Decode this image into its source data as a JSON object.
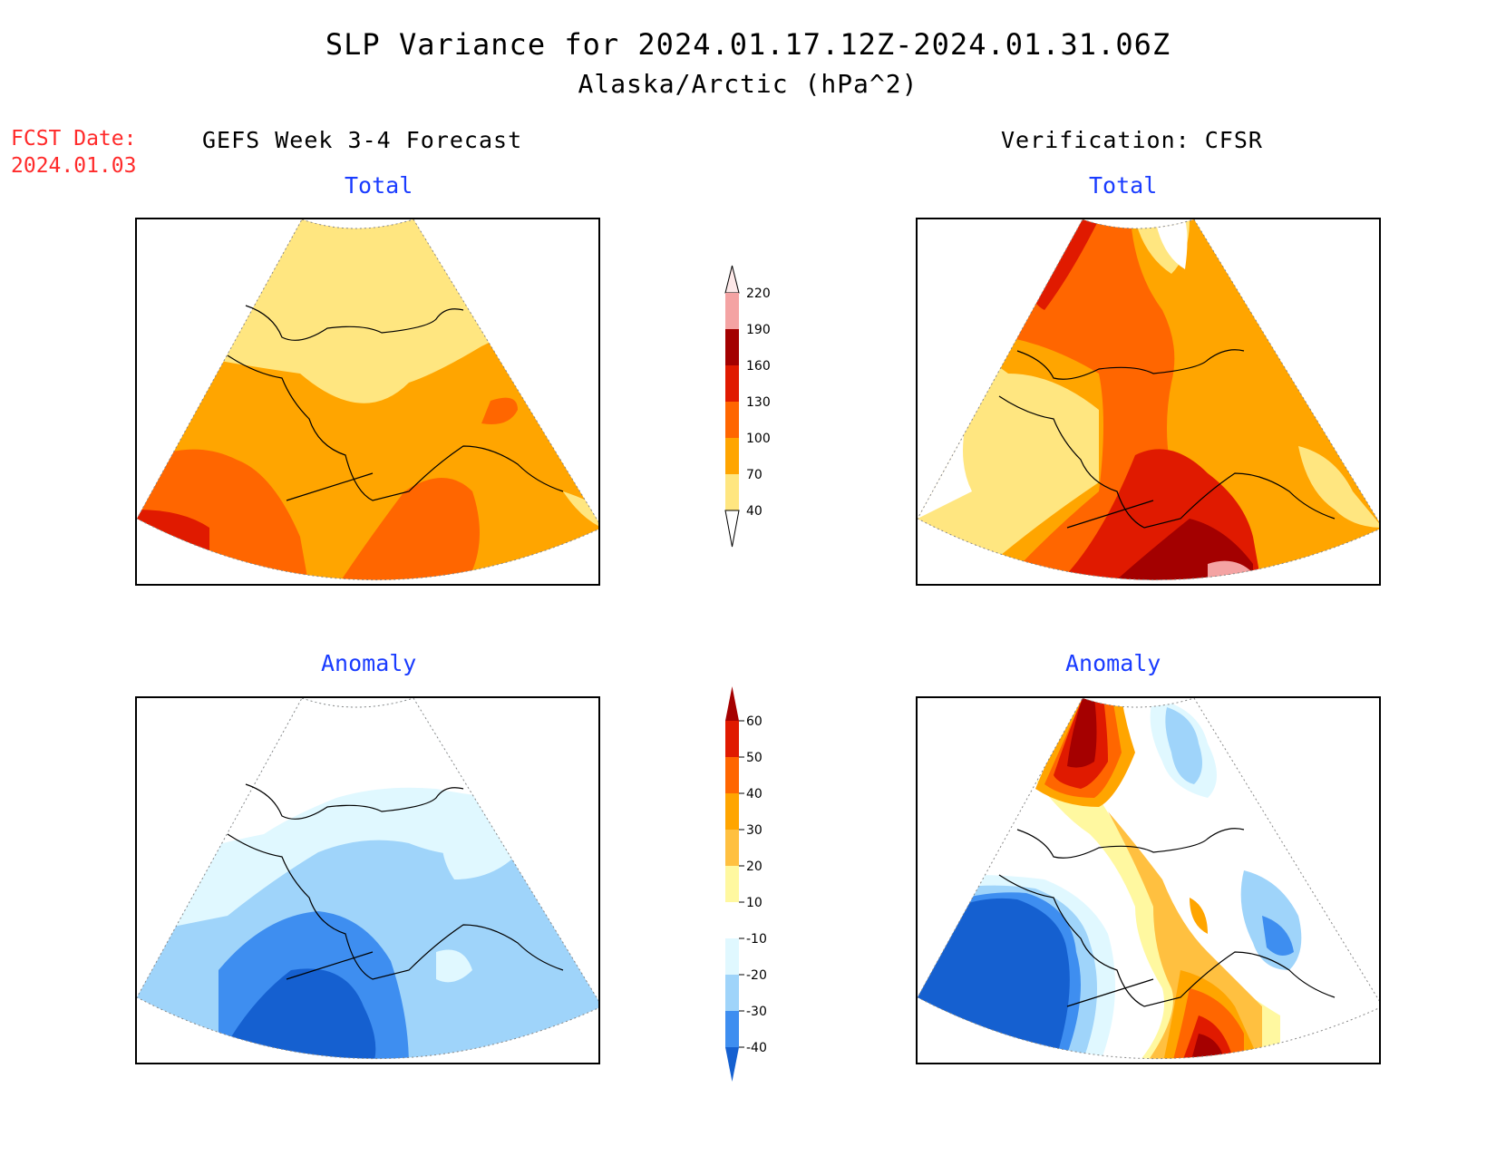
{
  "header": {
    "title": "SLP Variance for 2024.01.17.12Z-2024.01.31.06Z",
    "subtitle": "Alaska/Arctic (hPa^2)",
    "fcst_label": "FCST Date:",
    "fcst_date": "2024.01.03"
  },
  "columns": {
    "left": "GEFS Week 3-4 Forecast",
    "right": "Verification: CFSR"
  },
  "panels": {
    "top_left_title": "Total",
    "top_right_title": "Total",
    "bottom_left_title": "Anomaly",
    "bottom_right_title": "Anomaly"
  },
  "colorbar_total": {
    "levels": [
      "220",
      "190",
      "160",
      "130",
      "100",
      "70",
      "40"
    ],
    "colors": [
      "#fde8e8",
      "#f4a3a3",
      "#a30000",
      "#e01a00",
      "#ff6600",
      "#ffa500",
      "#ffe680"
    ]
  },
  "colorbar_anomaly": {
    "levels": [
      "60",
      "50",
      "40",
      "30",
      "20",
      "10",
      "-10",
      "-20",
      "-30",
      "-40"
    ],
    "colors": [
      "#a50000",
      "#e01a00",
      "#ff6600",
      "#ffa500",
      "#ffc040",
      "#fff8a0",
      "#ffffff",
      "#e0f8ff",
      "#9fd4fa",
      "#3e8ef0",
      "#1560d0"
    ]
  },
  "palette": {
    "total_light": "#ffe680",
    "total_orange": "#ffa500",
    "total_dark_orange": "#ff6600",
    "total_red": "#e01a00",
    "total_dark_red": "#a30000",
    "total_pink": "#f4a3a3",
    "anom_lightest_blue": "#e0f8ff",
    "anom_light_blue": "#9fd4fa",
    "anom_mid_blue": "#3e8ef0",
    "anom_dark_blue": "#1560d0",
    "anom_yellow": "#fff8a0",
    "anom_light_orange": "#ffc040",
    "anom_orange": "#ffa500",
    "anom_dark_orange": "#ff6600",
    "anom_red": "#e01a00",
    "anom_dark_red": "#a50000"
  }
}
